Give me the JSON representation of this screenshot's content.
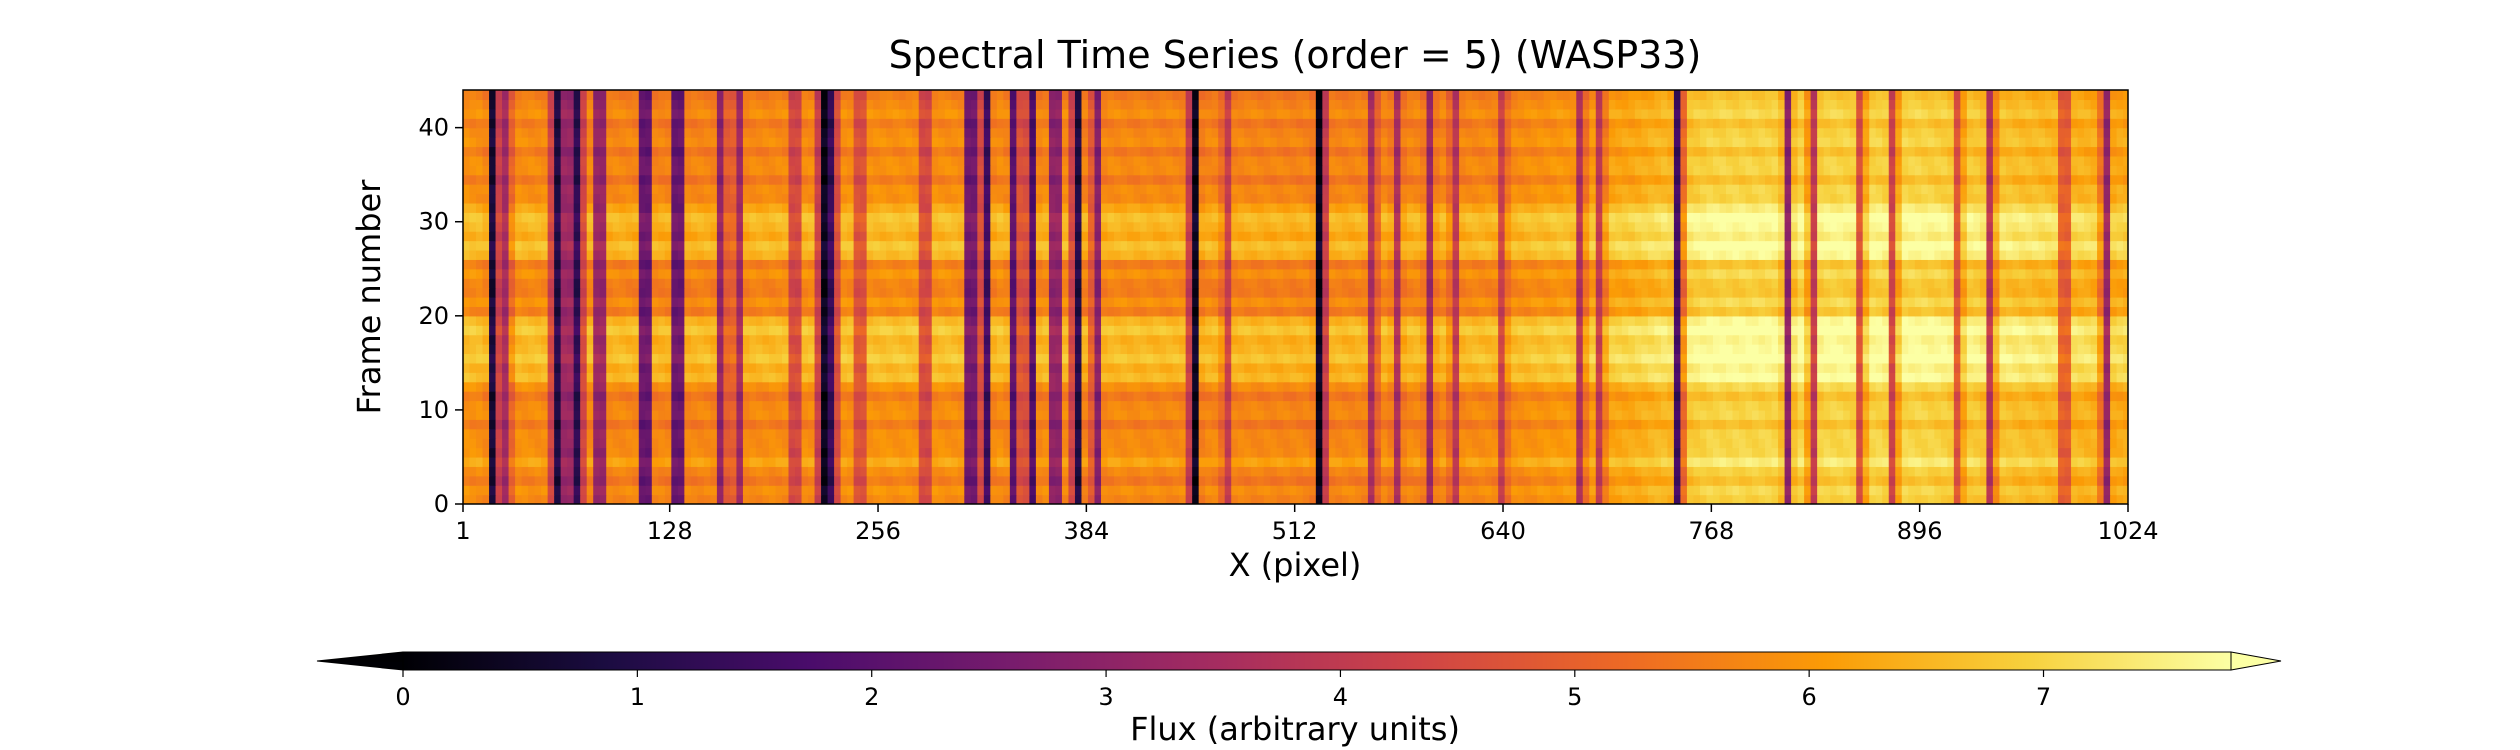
{
  "chart_data": {
    "type": "heatmap",
    "title": "Spectral Time Series (order = 5) (WASP33)",
    "xlabel": "X (pixel)",
    "ylabel": "Frame number",
    "xlim": [
      1,
      1024
    ],
    "ylim": [
      0,
      44
    ],
    "xticks": [
      1,
      128,
      256,
      384,
      512,
      640,
      768,
      896,
      1024
    ],
    "yticks": [
      0,
      10,
      20,
      30,
      40
    ],
    "colormap": "inferno",
    "colorbar": {
      "label": "Flux (arbitrary units)",
      "range": [
        0,
        7.8
      ],
      "ticks": [
        0,
        1,
        2,
        3,
        4,
        5,
        6,
        7
      ],
      "extend": "both"
    },
    "colormap_stops": [
      "#000004",
      "#1b0c41",
      "#4a0c6b",
      "#781c6d",
      "#a52c60",
      "#cf4446",
      "#ed6925",
      "#fb9b06",
      "#f7d13d",
      "#fcffa4"
    ],
    "continuum_flux": [
      {
        "x": 1,
        "flux": 5.8
      },
      {
        "x": 128,
        "flux": 5.6
      },
      {
        "x": 256,
        "flux": 5.8
      },
      {
        "x": 384,
        "flux": 5.7
      },
      {
        "x": 512,
        "flux": 5.6
      },
      {
        "x": 640,
        "flux": 5.7
      },
      {
        "x": 720,
        "flux": 6.2
      },
      {
        "x": 768,
        "flux": 6.9
      },
      {
        "x": 896,
        "flux": 6.9
      },
      {
        "x": 1024,
        "flux": 6.2
      }
    ],
    "absorption_lines": [
      {
        "x": 20,
        "depth": 0.95
      },
      {
        "x": 28,
        "depth": 0.45
      },
      {
        "x": 58,
        "depth": 0.9
      },
      {
        "x": 65,
        "depth": 0.7
      },
      {
        "x": 72,
        "depth": 0.85
      },
      {
        "x": 85,
        "depth": 0.75
      },
      {
        "x": 113,
        "depth": 0.98
      },
      {
        "x": 133,
        "depth": 0.98
      },
      {
        "x": 160,
        "depth": 0.5
      },
      {
        "x": 170,
        "depth": 0.45
      },
      {
        "x": 205,
        "depth": 0.4
      },
      {
        "x": 222,
        "depth": 1.0
      },
      {
        "x": 228,
        "depth": 0.8
      },
      {
        "x": 245,
        "depth": 0.35
      },
      {
        "x": 285,
        "depth": 0.4
      },
      {
        "x": 313,
        "depth": 0.98
      },
      {
        "x": 322,
        "depth": 0.8
      },
      {
        "x": 340,
        "depth": 0.7
      },
      {
        "x": 350,
        "depth": 0.75
      },
      {
        "x": 365,
        "depth": 0.8
      },
      {
        "x": 378,
        "depth": 0.9
      },
      {
        "x": 390,
        "depth": 0.55
      },
      {
        "x": 450,
        "depth": 1.0
      },
      {
        "x": 470,
        "depth": 0.3
      },
      {
        "x": 528,
        "depth": 1.0
      },
      {
        "x": 560,
        "depth": 0.4
      },
      {
        "x": 575,
        "depth": 0.35
      },
      {
        "x": 595,
        "depth": 0.4
      },
      {
        "x": 610,
        "depth": 0.35
      },
      {
        "x": 640,
        "depth": 0.3
      },
      {
        "x": 688,
        "depth": 0.45
      },
      {
        "x": 700,
        "depth": 0.4
      },
      {
        "x": 748,
        "depth": 0.95
      },
      {
        "x": 815,
        "depth": 0.65
      },
      {
        "x": 830,
        "depth": 0.55
      },
      {
        "x": 860,
        "depth": 0.45
      },
      {
        "x": 880,
        "depth": 0.5
      },
      {
        "x": 920,
        "depth": 0.4
      },
      {
        "x": 940,
        "depth": 0.55
      },
      {
        "x": 985,
        "depth": 0.45
      },
      {
        "x": 1010,
        "depth": 0.6
      }
    ],
    "bright_frames": [
      {
        "frame_from": 13,
        "frame_to": 19,
        "boost": 0.9
      },
      {
        "frame_from": 26,
        "frame_to": 31,
        "boost": 0.8
      },
      {
        "frame_from": 4,
        "frame_to": 5,
        "boost": 0.4
      }
    ]
  }
}
